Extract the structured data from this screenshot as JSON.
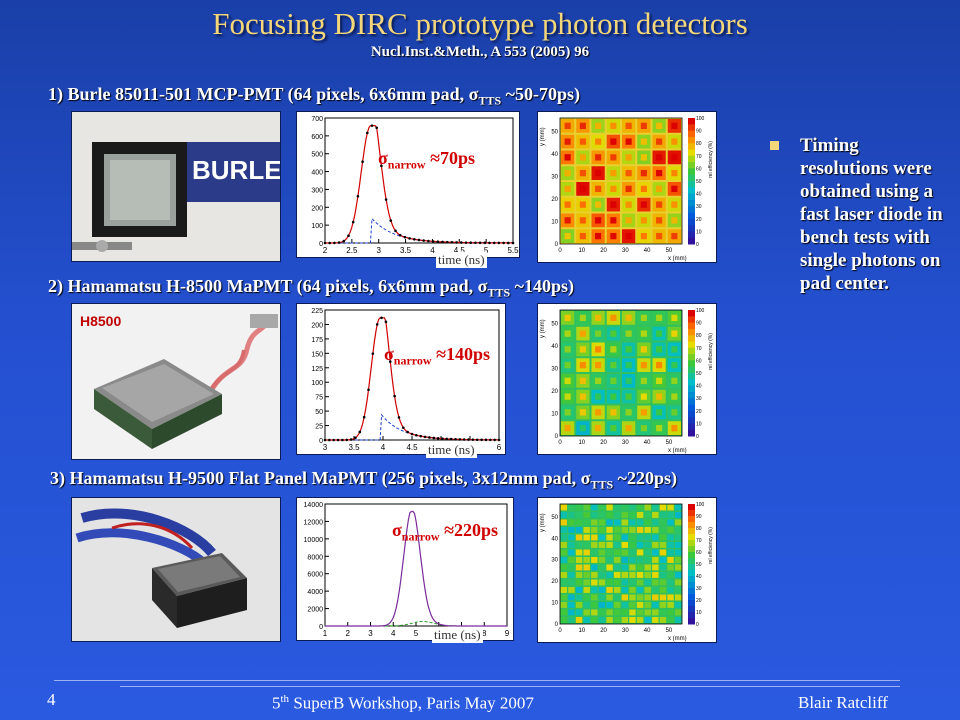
{
  "title": "Focusing DIRC prototype photon detectors",
  "subtitle": "Nucl.Inst.&Meth., A 553 (2005) 96",
  "detectors": [
    {
      "heading_pre": "1) Burle 85011-501 MCP-PMT  (64 pixels, 6x6mm pad, ",
      "sigma_sym": "σ",
      "sigma_sub": "TTS",
      "heading_post": " ~50-70ps)",
      "photo_text": "BURLE",
      "sigma_label": "σ",
      "sigma_label_sub": "narrow",
      "sigma_value": " ≈70ps",
      "time_label": "time (ns)",
      "hist": {
        "y_ticks": [
          "700",
          "600",
          "500",
          "400",
          "300",
          "200",
          "100",
          "0"
        ],
        "x_ticks": [
          "2",
          "2.5",
          "3",
          "3.5",
          "4",
          "4.5",
          "5",
          "5.5"
        ],
        "peak_x": 2.85,
        "x_min": 2.0,
        "x_max": 5.5,
        "y_max": 700
      },
      "map": {
        "y_label": "y (mm)",
        "x_label": "x (mm)",
        "z_label": "rel efficiency (%)",
        "x_ticks": [
          "0",
          "10",
          "20",
          "30",
          "40",
          "50"
        ],
        "y_ticks": [
          "50",
          "40",
          "30",
          "20",
          "10",
          "0"
        ],
        "z_ticks": [
          "100",
          "90",
          "80",
          "70",
          "60",
          "50",
          "40",
          "30",
          "20",
          "10",
          "0"
        ]
      }
    },
    {
      "heading_pre": "2) Hamamatsu H-8500 MaPMT (64 pixels, 6x6mm pad, ",
      "sigma_sym": "σ",
      "sigma_sub": "TTS",
      "heading_post": " ~140ps)",
      "photo_text": "H8500",
      "sigma_label": "σ",
      "sigma_label_sub": "narrow",
      "sigma_value": " ≈140ps",
      "time_label": "time (ns)",
      "hist": {
        "y_ticks": [
          "225",
          "200",
          "175",
          "150",
          "125",
          "100",
          "75",
          "50",
          "25",
          "0"
        ],
        "x_ticks": [
          "3",
          "3.5",
          "4",
          "4.5",
          "5",
          "5.5",
          "6"
        ],
        "peak_x": 3.95,
        "x_min": 3.0,
        "x_max": 6.0,
        "y_max": 225
      },
      "map": {
        "y_label": "y (mm)",
        "x_label": "x (mm)",
        "z_label": "rel efficiency (%)",
        "x_ticks": [
          "0",
          "10",
          "20",
          "30",
          "40",
          "50"
        ],
        "y_ticks": [
          "50",
          "40",
          "30",
          "20",
          "10",
          "0"
        ],
        "z_ticks": [
          "100",
          "90",
          "80",
          "70",
          "60",
          "50",
          "40",
          "30",
          "20",
          "10",
          "0"
        ]
      }
    },
    {
      "heading_pre": "3) Hamamatsu H-9500 Flat Panel MaPMT (256 pixels, 3x12mm pad, ",
      "sigma_sym": "σ",
      "sigma_sub": "TTS",
      "heading_post": " ~220ps)",
      "photo_text": "",
      "sigma_label": "σ",
      "sigma_label_sub": "narrow",
      "sigma_value": " ≈220ps",
      "time_label": "time (ns)",
      "hist": {
        "y_ticks": [
          "14000",
          "12000",
          "10000",
          "8000",
          "6000",
          "4000",
          "2000",
          "0"
        ],
        "x_ticks": [
          "1",
          "2",
          "3",
          "4",
          "5",
          "6",
          "7",
          "8",
          "9"
        ],
        "peak_x": 4.8,
        "x_min": 0.5,
        "x_max": 9.5,
        "y_max": 14000
      },
      "map": {
        "y_label": "y (mm)",
        "x_label": "x (mm)",
        "z_label": "rel efficiency (%)",
        "x_ticks": [
          "0",
          "10",
          "20",
          "30",
          "40",
          "50"
        ],
        "y_ticks": [
          "50",
          "40",
          "30",
          "20",
          "10",
          "0"
        ],
        "z_ticks": [
          "100",
          "90",
          "80",
          "70",
          "60",
          "50",
          "40",
          "30",
          "20",
          "10",
          "0"
        ]
      }
    }
  ],
  "bullet": "Timing resolutions were obtained using a fast laser diode in bench tests with single photons on pad center.",
  "footer": {
    "page_number": "4",
    "center_pre": "5",
    "center_sup": "th",
    "center_post": " SuperB Workshop, Paris  May 2007",
    "right": "Blair Ratcliff"
  },
  "colors": {
    "title": "#f4d77a",
    "sigma": "#d00000",
    "bullet_square": "#f4d77a"
  }
}
